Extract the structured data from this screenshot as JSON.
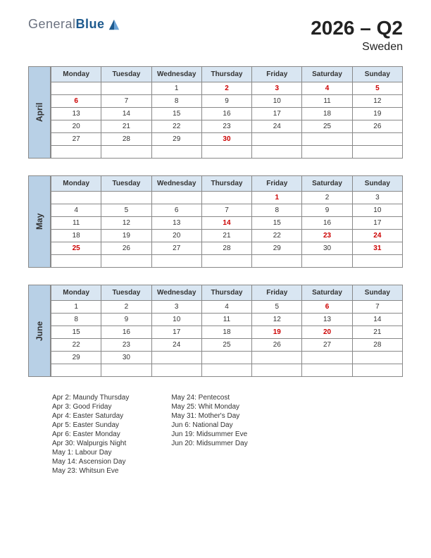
{
  "logo": {
    "text1": "General",
    "text2": "Blue"
  },
  "title": "2026 – Q2",
  "subtitle": "Sweden",
  "days": [
    "Monday",
    "Tuesday",
    "Wednesday",
    "Thursday",
    "Friday",
    "Saturday",
    "Sunday"
  ],
  "colors": {
    "header_bg": "#d9e6f2",
    "tab_bg": "#b8d0e6",
    "border": "#888888",
    "holiday": "#cc0000",
    "text": "#333333",
    "logo_gray": "#6b7280",
    "logo_blue": "#1e5a8e"
  },
  "months": [
    {
      "name": "April",
      "rows": [
        [
          {
            "v": ""
          },
          {
            "v": ""
          },
          {
            "v": "1"
          },
          {
            "v": "2",
            "h": true
          },
          {
            "v": "3",
            "h": true
          },
          {
            "v": "4",
            "h": true
          },
          {
            "v": "5",
            "h": true
          }
        ],
        [
          {
            "v": "6",
            "h": true
          },
          {
            "v": "7"
          },
          {
            "v": "8"
          },
          {
            "v": "9"
          },
          {
            "v": "10"
          },
          {
            "v": "11"
          },
          {
            "v": "12"
          }
        ],
        [
          {
            "v": "13"
          },
          {
            "v": "14"
          },
          {
            "v": "15"
          },
          {
            "v": "16"
          },
          {
            "v": "17"
          },
          {
            "v": "18"
          },
          {
            "v": "19"
          }
        ],
        [
          {
            "v": "20"
          },
          {
            "v": "21"
          },
          {
            "v": "22"
          },
          {
            "v": "23"
          },
          {
            "v": "24"
          },
          {
            "v": "25"
          },
          {
            "v": "26"
          }
        ],
        [
          {
            "v": "27"
          },
          {
            "v": "28"
          },
          {
            "v": "29"
          },
          {
            "v": "30",
            "h": true
          },
          {
            "v": ""
          },
          {
            "v": ""
          },
          {
            "v": ""
          }
        ],
        [
          {
            "v": ""
          },
          {
            "v": ""
          },
          {
            "v": ""
          },
          {
            "v": ""
          },
          {
            "v": ""
          },
          {
            "v": ""
          },
          {
            "v": ""
          }
        ]
      ]
    },
    {
      "name": "May",
      "rows": [
        [
          {
            "v": ""
          },
          {
            "v": ""
          },
          {
            "v": ""
          },
          {
            "v": ""
          },
          {
            "v": "1",
            "h": true
          },
          {
            "v": "2"
          },
          {
            "v": "3"
          }
        ],
        [
          {
            "v": "4"
          },
          {
            "v": "5"
          },
          {
            "v": "6"
          },
          {
            "v": "7"
          },
          {
            "v": "8"
          },
          {
            "v": "9"
          },
          {
            "v": "10"
          }
        ],
        [
          {
            "v": "11"
          },
          {
            "v": "12"
          },
          {
            "v": "13"
          },
          {
            "v": "14",
            "h": true
          },
          {
            "v": "15"
          },
          {
            "v": "16"
          },
          {
            "v": "17"
          }
        ],
        [
          {
            "v": "18"
          },
          {
            "v": "19"
          },
          {
            "v": "20"
          },
          {
            "v": "21"
          },
          {
            "v": "22"
          },
          {
            "v": "23",
            "h": true
          },
          {
            "v": "24",
            "h": true
          }
        ],
        [
          {
            "v": "25",
            "h": true
          },
          {
            "v": "26"
          },
          {
            "v": "27"
          },
          {
            "v": "28"
          },
          {
            "v": "29"
          },
          {
            "v": "30"
          },
          {
            "v": "31",
            "h": true
          }
        ],
        [
          {
            "v": ""
          },
          {
            "v": ""
          },
          {
            "v": ""
          },
          {
            "v": ""
          },
          {
            "v": ""
          },
          {
            "v": ""
          },
          {
            "v": ""
          }
        ]
      ]
    },
    {
      "name": "June",
      "rows": [
        [
          {
            "v": "1"
          },
          {
            "v": "2"
          },
          {
            "v": "3"
          },
          {
            "v": "4"
          },
          {
            "v": "5"
          },
          {
            "v": "6",
            "h": true
          },
          {
            "v": "7"
          }
        ],
        [
          {
            "v": "8"
          },
          {
            "v": "9"
          },
          {
            "v": "10"
          },
          {
            "v": "11"
          },
          {
            "v": "12"
          },
          {
            "v": "13"
          },
          {
            "v": "14"
          }
        ],
        [
          {
            "v": "15"
          },
          {
            "v": "16"
          },
          {
            "v": "17"
          },
          {
            "v": "18"
          },
          {
            "v": "19",
            "h": true
          },
          {
            "v": "20",
            "h": true
          },
          {
            "v": "21"
          }
        ],
        [
          {
            "v": "22"
          },
          {
            "v": "23"
          },
          {
            "v": "24"
          },
          {
            "v": "25"
          },
          {
            "v": "26"
          },
          {
            "v": "27"
          },
          {
            "v": "28"
          }
        ],
        [
          {
            "v": "29"
          },
          {
            "v": "30"
          },
          {
            "v": ""
          },
          {
            "v": ""
          },
          {
            "v": ""
          },
          {
            "v": ""
          },
          {
            "v": ""
          }
        ],
        [
          {
            "v": ""
          },
          {
            "v": ""
          },
          {
            "v": ""
          },
          {
            "v": ""
          },
          {
            "v": ""
          },
          {
            "v": ""
          },
          {
            "v": ""
          }
        ]
      ]
    }
  ],
  "holidays": {
    "left": [
      "Apr 2: Maundy Thursday",
      "Apr 3: Good Friday",
      "Apr 4: Easter Saturday",
      "Apr 5: Easter Sunday",
      "Apr 6: Easter Monday",
      "Apr 30: Walpurgis Night",
      "May 1: Labour Day",
      "May 14: Ascension Day",
      "May 23: Whitsun Eve"
    ],
    "right": [
      "May 24: Pentecost",
      "May 25: Whit Monday",
      "May 31: Mother's Day",
      "Jun 6: National Day",
      "Jun 19: Midsummer Eve",
      "Jun 20: Midsummer Day"
    ]
  }
}
